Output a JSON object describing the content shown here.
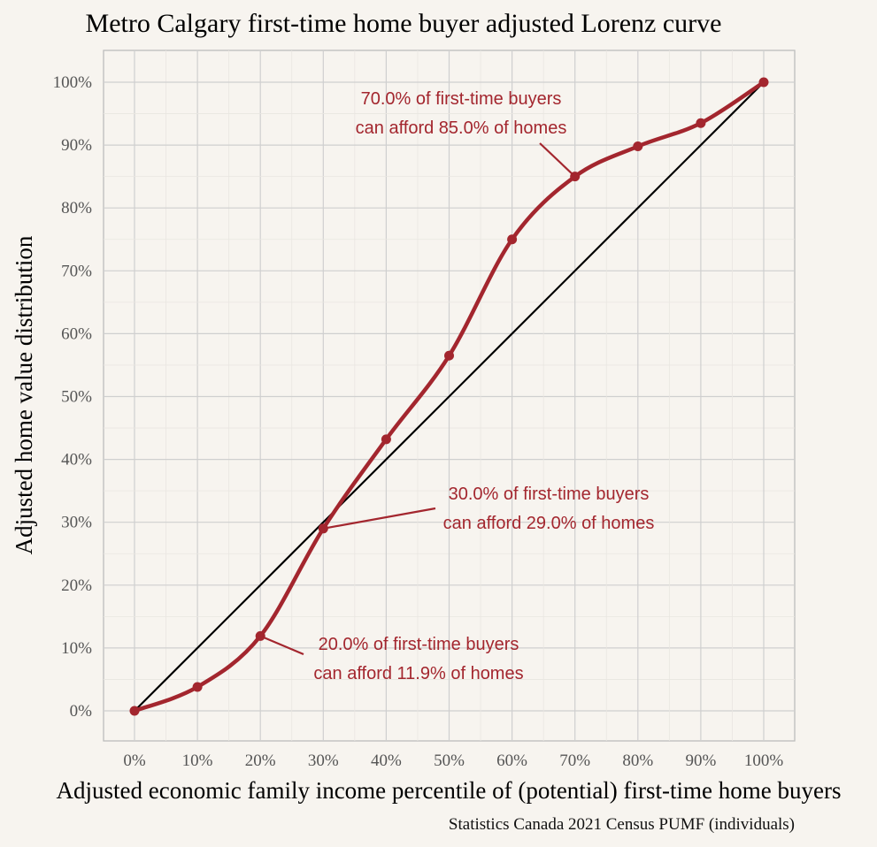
{
  "chart_data": {
    "type": "line",
    "title": "Metro Calgary first-time home buyer adjusted Lorenz curve",
    "xlabel": "Adjusted economic family income percentile of (potential) first-time home buyers",
    "ylabel": "Adjusted home value distribution",
    "caption": "Statistics Canada 2021 Census PUMF (individuals)",
    "xlim": [
      0,
      100
    ],
    "ylim": [
      0,
      100
    ],
    "x_ticks": [
      "0%",
      "10%",
      "20%",
      "30%",
      "40%",
      "50%",
      "60%",
      "70%",
      "80%",
      "90%",
      "100%"
    ],
    "y_ticks": [
      "0%",
      "10%",
      "20%",
      "30%",
      "40%",
      "50%",
      "60%",
      "70%",
      "80%",
      "90%",
      "100%"
    ],
    "grid": true,
    "series": [
      {
        "color": "#a3262e",
        "x": [
          0,
          10,
          20,
          30,
          40,
          50,
          60,
          70,
          80,
          90,
          100
        ],
        "y": [
          0,
          3.8,
          11.9,
          29.0,
          43.2,
          56.5,
          75.0,
          85.0,
          89.8,
          93.5,
          100
        ]
      },
      {
        "color": "#000000",
        "x": [
          0,
          100
        ],
        "y": [
          0,
          100
        ]
      }
    ],
    "annotations": [
      {
        "lines": [
          "70.0% of first-time buyers",
          "can afford 85.0% of homes"
        ],
        "x": 70,
        "y": 85.0
      },
      {
        "lines": [
          "30.0% of first-time buyers",
          "can afford 29.0% of homes"
        ],
        "x": 30,
        "y": 29.0
      },
      {
        "lines": [
          "20.0% of first-time buyers",
          "can afford 11.9% of homes"
        ],
        "x": 20,
        "y": 11.9
      }
    ]
  }
}
